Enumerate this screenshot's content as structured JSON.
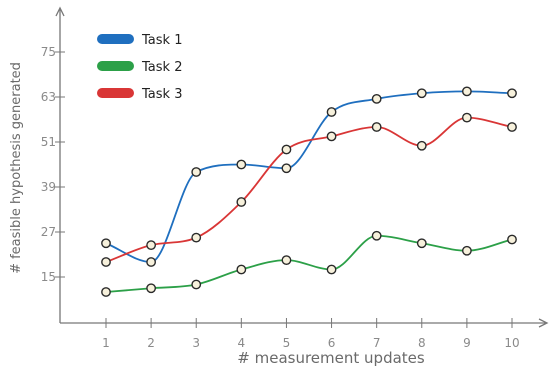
{
  "chart_data": {
    "type": "line",
    "title": "",
    "xlabel": "# measurement updates",
    "ylabel": "# feasible hypothesis generated",
    "x": [
      1,
      2,
      3,
      4,
      5,
      6,
      7,
      8,
      9,
      10
    ],
    "x_ticks": [
      1,
      2,
      3,
      4,
      5,
      6,
      7,
      8,
      9,
      10
    ],
    "y_ticks": [
      15,
      27,
      39,
      51,
      63,
      75
    ],
    "xlim": [
      0.1,
      10.8
    ],
    "ylim": [
      3,
      82
    ],
    "grid": false,
    "legend_position": "top-left",
    "series": [
      {
        "name": "Task 1",
        "color": "#1f6fbf",
        "values": [
          24,
          19,
          43,
          45,
          44,
          59,
          62.5,
          64,
          64.5,
          64
        ]
      },
      {
        "name": "Task 2",
        "color": "#2ca048",
        "values": [
          11,
          12,
          13,
          17,
          19.5,
          17,
          26,
          24,
          22,
          25
        ]
      },
      {
        "name": "Task 3",
        "color": "#d93636",
        "values": [
          19,
          23.5,
          25.5,
          35,
          49,
          52.5,
          55,
          50,
          57.5,
          55
        ]
      }
    ]
  }
}
